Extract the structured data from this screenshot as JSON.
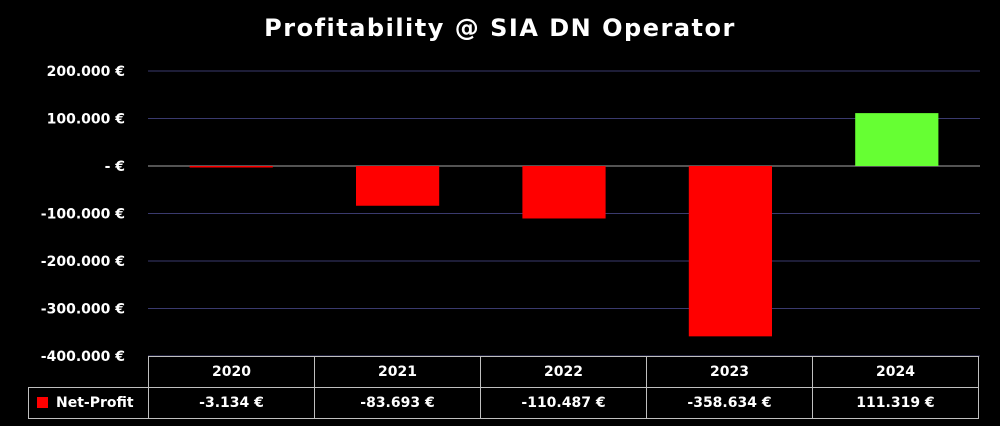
{
  "colors": {
    "negative": "#ff0000",
    "positive": "#66ff33",
    "gridline": "#3a3a6e",
    "zeroline": "#a6a6a6",
    "background": "#000000"
  },
  "chart_data": {
    "type": "bar",
    "title": "Profitability @ SIA DN Operator",
    "categories": [
      "2020",
      "2021",
      "2022",
      "2023",
      "2024"
    ],
    "series": [
      {
        "name": "Net-Profit",
        "values": [
          -3134,
          -83693,
          -110487,
          -358634,
          111319
        ],
        "labels": [
          "-3.134 €",
          "-83.693 €",
          "-110.487 €",
          "-358.634 €",
          "111.319 €"
        ]
      }
    ],
    "ylim": [
      -400000,
      200000
    ],
    "yticks": [
      200000,
      100000,
      0,
      -100000,
      -200000,
      -300000,
      -400000
    ],
    "ytick_labels": [
      "200.000 €",
      "100.000 €",
      "-  €",
      "-100.000 €",
      "-200.000 €",
      "-300.000 €",
      "-400.000 €"
    ],
    "grid": true,
    "legend": "data-table"
  }
}
